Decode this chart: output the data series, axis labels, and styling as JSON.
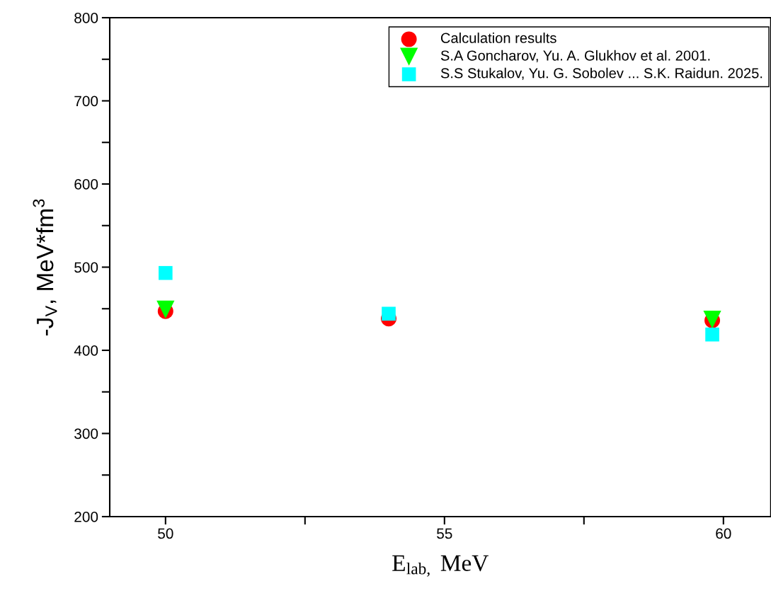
{
  "chart_data": {
    "type": "scatter",
    "xlabel": "E$_{lab,}$ MeV",
    "ylabel": "-J$_{V}$, MeV*fm$^{3}$",
    "series": [
      {
        "name": "Calculation results",
        "color": "#ff0000",
        "marker": "circle",
        "x": [
          50,
          54,
          59.8
        ],
        "values": [
          447,
          438,
          436
        ]
      },
      {
        "name": "S.A Goncharov, Yu. A. Glukhov et al. 2001.",
        "color": "#00ff00",
        "marker": "triangle",
        "x": [
          50,
          59.8
        ],
        "values": [
          449,
          437
        ]
      },
      {
        "name": "S.S Stukalov, Yu. G. Sobolev ... S.K. Raidun. 2025.",
        "color": "#00ffff",
        "marker": "square",
        "x": [
          50,
          54,
          59.8
        ],
        "values": [
          493,
          444,
          419
        ]
      }
    ],
    "xlim": [
      49,
      60.85
    ],
    "ylim": [
      200,
      800
    ],
    "xticks": [
      50,
      {
        "value": 52.5,
        "label": null
      },
      55,
      {
        "value": 57.5,
        "label": null
      },
      60
    ],
    "yticks": [
      200,
      {
        "value": 250,
        "label": null
      },
      300,
      {
        "value": 350,
        "label": null
      },
      400,
      {
        "value": 450,
        "label": null
      },
      500,
      {
        "value": 550,
        "label": null
      },
      600,
      {
        "value": 650,
        "label": null
      },
      700,
      {
        "value": 750,
        "label": null
      },
      800
    ],
    "grid": false,
    "legend": "top right"
  }
}
